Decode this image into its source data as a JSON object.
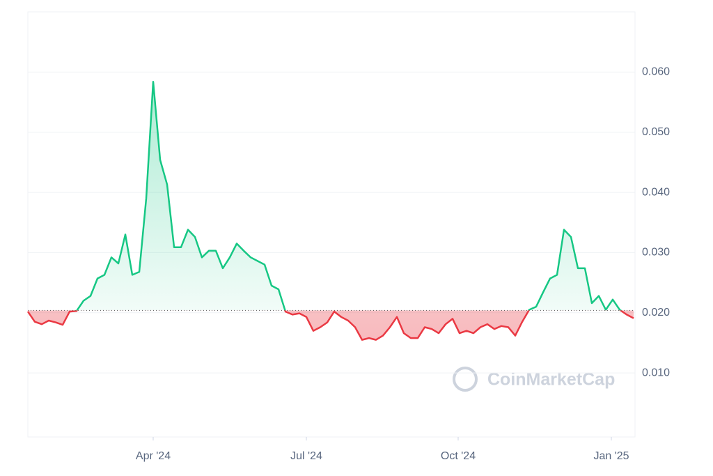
{
  "chart_data": {
    "type": "line",
    "series": [
      {
        "color": "#16c784",
        "down_color": "#ea3943",
        "values": [
          0.0202,
          0.0185,
          0.0181,
          0.0187,
          0.0184,
          0.018,
          0.0202,
          0.0203,
          0.022,
          0.0228,
          0.0257,
          0.0263,
          0.0292,
          0.0282,
          0.033,
          0.0263,
          0.0268,
          0.039,
          0.0584,
          0.0454,
          0.0413,
          0.0309,
          0.0309,
          0.0338,
          0.0326,
          0.0292,
          0.0303,
          0.0303,
          0.0274,
          0.0292,
          0.0315,
          0.0303,
          0.0292,
          0.0286,
          0.028,
          0.0245,
          0.0239,
          0.0202,
          0.0197,
          0.0199,
          0.0193,
          0.017,
          0.0176,
          0.0184,
          0.0202,
          0.0193,
          0.0187,
          0.0176,
          0.0155,
          0.0158,
          0.0155,
          0.0162,
          0.0176,
          0.0193,
          0.0166,
          0.0158,
          0.0158,
          0.0176,
          0.0173,
          0.0166,
          0.0181,
          0.019,
          0.0166,
          0.017,
          0.0166,
          0.0176,
          0.0181,
          0.0173,
          0.0178,
          0.0176,
          0.0162,
          0.0185,
          0.0205,
          0.021,
          0.0234,
          0.0257,
          0.0263,
          0.0338,
          0.0326,
          0.0274,
          0.0274,
          0.0216,
          0.0228,
          0.0205,
          0.0222,
          0.0205,
          0.0197,
          0.0191
        ]
      }
    ],
    "baseline": 0.0204,
    "xlim": [
      0,
      87
    ],
    "xticks": [
      {
        "value": 18,
        "label": "Apr '24"
      },
      {
        "value": 40,
        "label": "Jul '24"
      },
      {
        "value": 61.8,
        "label": "Oct '24"
      },
      {
        "value": 83.8,
        "label": "Jan '25"
      }
    ],
    "ylim": [
      0,
      0.07
    ],
    "yticks": [
      {
        "value": 0.01,
        "label": "0.010"
      },
      {
        "value": 0.02,
        "label": "0.020"
      },
      {
        "value": 0.03,
        "label": "0.030"
      },
      {
        "value": 0.04,
        "label": "0.040"
      },
      {
        "value": 0.05,
        "label": "0.050"
      },
      {
        "value": 0.06,
        "label": "0.060"
      }
    ],
    "grid": true,
    "watermark": "CoinMarketCap"
  }
}
